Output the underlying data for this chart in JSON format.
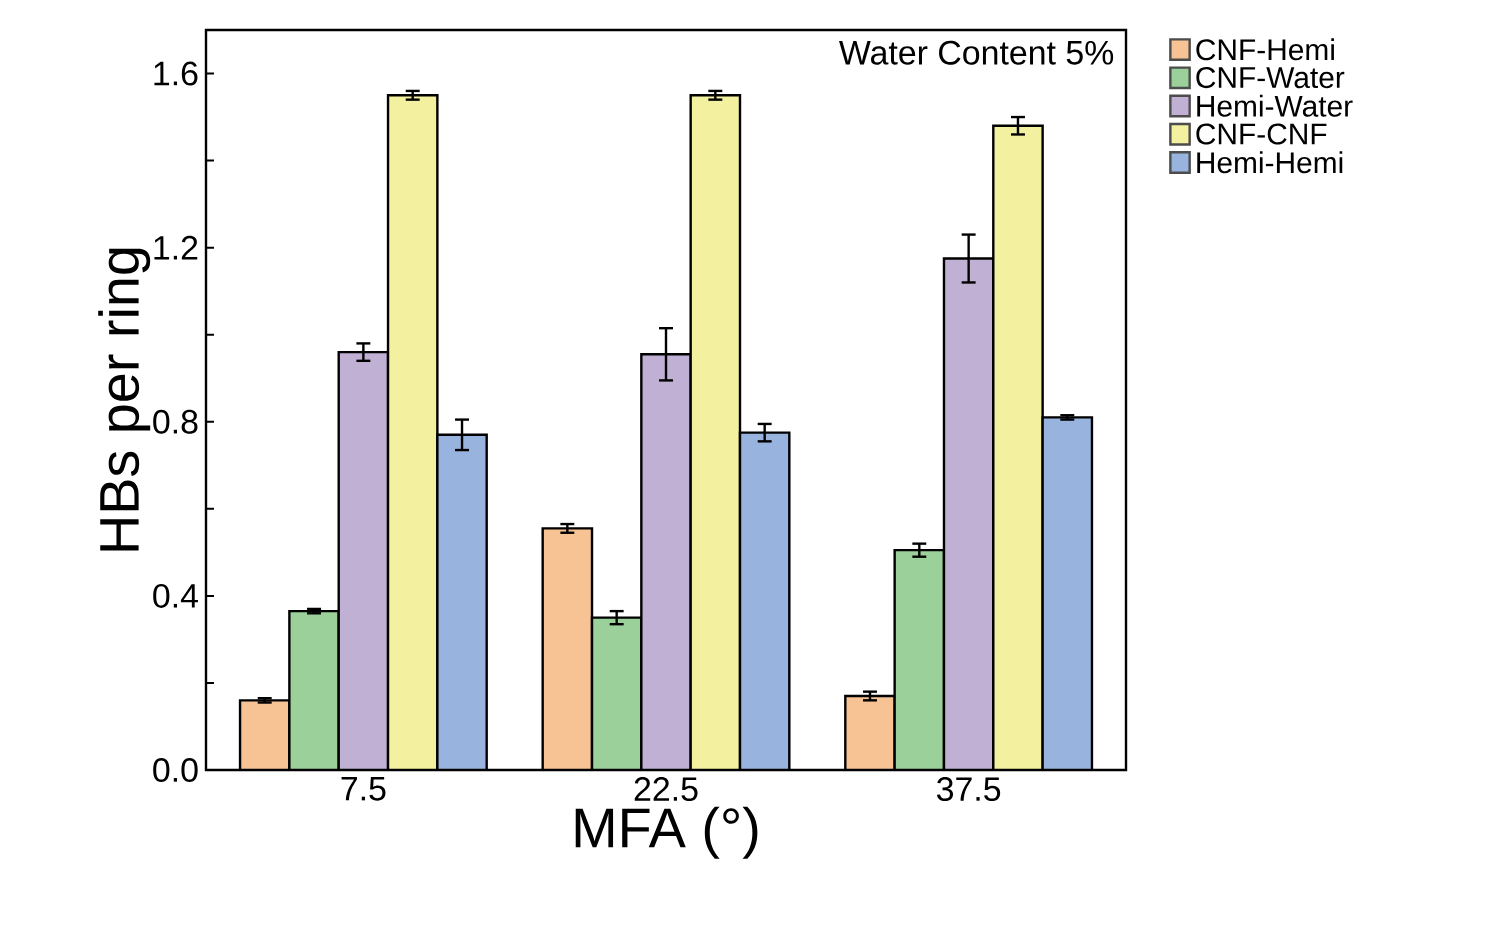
{
  "chart_data": {
    "type": "bar",
    "xlabel": "MFA (°)",
    "ylabel": "HBs per ring",
    "categories": [
      "7.5",
      "22.5",
      "37.5"
    ],
    "series": [
      {
        "name": "CNF-Hemi",
        "color": "#f7c394",
        "values": [
          0.16,
          0.555,
          0.17
        ],
        "errors": [
          0.005,
          0.01,
          0.01
        ]
      },
      {
        "name": "CNF-Water",
        "color": "#9bd09a",
        "values": [
          0.365,
          0.35,
          0.505
        ],
        "errors": [
          0.005,
          0.015,
          0.015
        ]
      },
      {
        "name": "Hemi-Water",
        "color": "#bfb0d4",
        "values": [
          0.96,
          0.955,
          1.175
        ],
        "errors": [
          0.02,
          0.06,
          0.055
        ]
      },
      {
        "name": "CNF-CNF",
        "color": "#f3f19f",
        "values": [
          1.55,
          1.55,
          1.48
        ],
        "errors": [
          0.01,
          0.01,
          0.02
        ]
      },
      {
        "name": "Hemi-Hemi",
        "color": "#98b4de",
        "values": [
          0.77,
          0.775,
          0.81
        ],
        "errors": [
          0.035,
          0.02,
          0.005
        ]
      }
    ],
    "ylim": [
      0,
      1.7
    ],
    "yticks": [
      {
        "value": 0.0,
        "label": "0.0"
      },
      {
        "value": 0.2,
        "label": null
      },
      {
        "value": 0.4,
        "label": "0.4"
      },
      {
        "value": 0.6,
        "label": null
      },
      {
        "value": 0.8,
        "label": "0.8"
      },
      {
        "value": 1.0,
        "label": null
      },
      {
        "value": 1.2,
        "label": "1.2"
      },
      {
        "value": 1.4,
        "label": null
      },
      {
        "value": 1.6,
        "label": "1.6"
      }
    ],
    "annotations": [
      "Water Content 5%"
    ],
    "legend": "top right",
    "grid": false
  }
}
